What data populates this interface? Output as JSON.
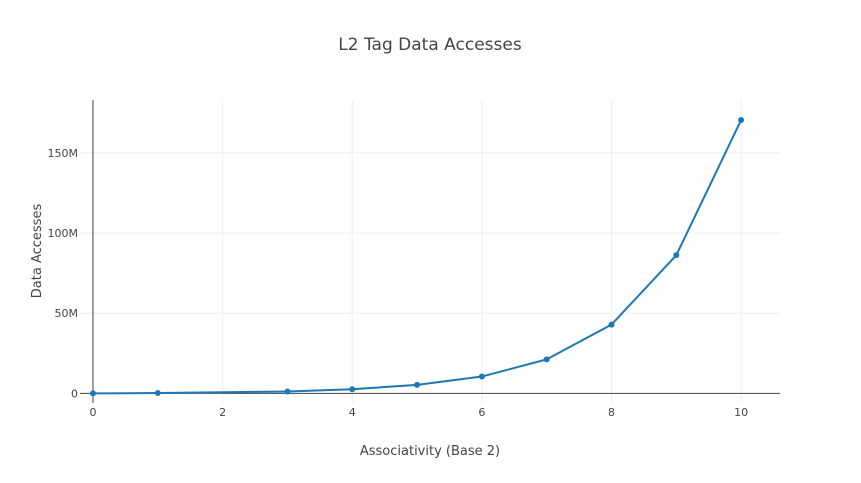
{
  "chart_data": {
    "type": "line",
    "title": "L2 Tag Data Accesses",
    "xlabel": "Associativity (Base 2)",
    "ylabel": "Data Accesses",
    "xlim": [
      -0.2,
      10.6
    ],
    "ylim": [
      -6000000,
      183000000
    ],
    "x_ticks": [
      0,
      2,
      4,
      6,
      8,
      10
    ],
    "y_ticks": [
      0,
      50000000,
      100000000,
      150000000
    ],
    "y_tick_labels": [
      "0",
      "50M",
      "100M",
      "150M"
    ],
    "grid": true,
    "color": "#1f77b4",
    "series": [
      {
        "name": "L2 Tag Data Accesses",
        "x": [
          0,
          1,
          3,
          4,
          5,
          6,
          7,
          8,
          9,
          10
        ],
        "values": [
          0,
          200000,
          1200000,
          2600000,
          5300000,
          10500000,
          21200000,
          42900000,
          86200000,
          170500000
        ]
      }
    ]
  }
}
